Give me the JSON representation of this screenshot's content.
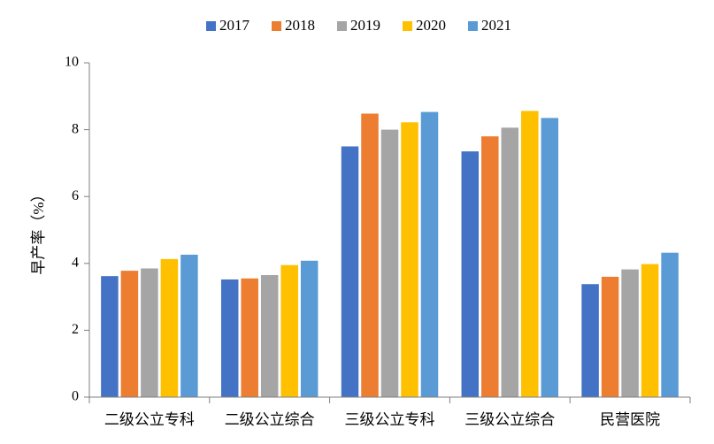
{
  "chart_data": {
    "type": "bar",
    "title": "",
    "xlabel": "",
    "ylabel": "早产率（%）",
    "ylim": [
      0,
      10
    ],
    "yticks": [
      0,
      2,
      4,
      6,
      8,
      10
    ],
    "grid": false,
    "legend_position": "top",
    "categories": [
      "二级公立专科",
      "二级公立综合",
      "三级公立专科",
      "三级公立综合",
      "民营医院"
    ],
    "series": [
      {
        "name": "2017",
        "color": "#4472C4",
        "values": [
          3.62,
          3.52,
          7.5,
          7.35,
          3.38
        ]
      },
      {
        "name": "2018",
        "color": "#ED7D31",
        "values": [
          3.78,
          3.55,
          8.48,
          7.8,
          3.6
        ]
      },
      {
        "name": "2019",
        "color": "#A5A5A5",
        "values": [
          3.85,
          3.65,
          8.0,
          8.06,
          3.82
        ]
      },
      {
        "name": "2020",
        "color": "#FFC000",
        "values": [
          4.13,
          3.95,
          8.22,
          8.56,
          3.98
        ]
      },
      {
        "name": "2021",
        "color": "#5B9BD5",
        "values": [
          4.26,
          4.08,
          8.53,
          8.35,
          4.32
        ]
      }
    ]
  }
}
